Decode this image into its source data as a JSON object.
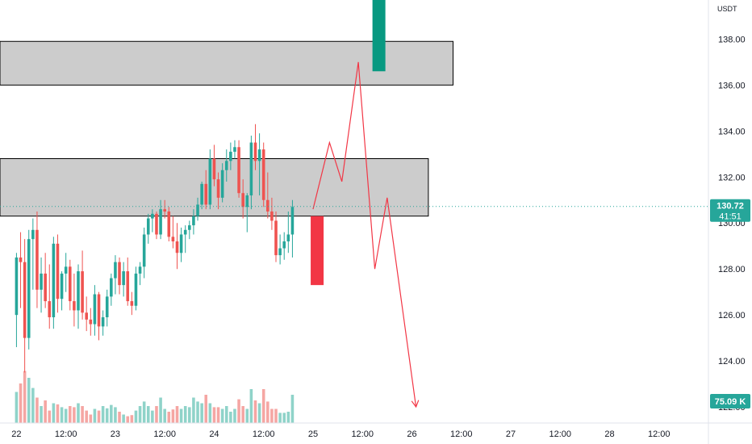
{
  "chart_data": {
    "type": "candlestick",
    "currency": "USDT",
    "y_ticks": [
      "122.00",
      "124.00",
      "126.00",
      "128.00",
      "130.00",
      "132.00",
      "134.00",
      "136.00",
      "138.00"
    ],
    "ylim": [
      121.3,
      139.7
    ],
    "x_ticks": [
      {
        "label": "22",
        "t": 0
      },
      {
        "label": "12:00",
        "t": 12
      },
      {
        "label": "23",
        "t": 24
      },
      {
        "label": "12:00",
        "t": 36
      },
      {
        "label": "24",
        "t": 48
      },
      {
        "label": "12:00",
        "t": 60
      },
      {
        "label": "25",
        "t": 72
      },
      {
        "label": "12:00",
        "t": 84
      },
      {
        "label": "26",
        "t": 96
      },
      {
        "label": "12:00",
        "t": 108
      },
      {
        "label": "27",
        "t": 120
      },
      {
        "label": "12:00",
        "t": 132
      },
      {
        "label": "28",
        "t": 144
      },
      {
        "label": "12:00",
        "t": 156
      }
    ],
    "xlim": [
      -4,
      168
    ],
    "last_price": {
      "value": "130.72",
      "countdown": "41:51"
    },
    "volume_label": "75.09 K",
    "colors": {
      "up": "#26a69a",
      "down": "#ef5350",
      "vol_up": "#8fd3c9",
      "vol_down": "#f5a6a3",
      "zone": "#cccccc",
      "projection": "#f23645",
      "accent_up": "#089981",
      "accent_down": "#f23645"
    },
    "zones": [
      {
        "from": 136.0,
        "to": 137.9,
        "t_start": -4,
        "t_end": 106
      },
      {
        "from": 130.3,
        "to": 132.8,
        "t_start": -4,
        "t_end": 100
      }
    ],
    "projection_path": [
      [
        72,
        130.6
      ],
      [
        76,
        133.5
      ],
      [
        79,
        131.8
      ],
      [
        83,
        137.0
      ],
      [
        87,
        128.0
      ],
      [
        90,
        131.1
      ],
      [
        97,
        122.0
      ]
    ],
    "marker_bars": [
      {
        "t": 88,
        "top": 141.0,
        "bottom": 136.6,
        "color": "accent_up"
      },
      {
        "t": 73,
        "top": 130.3,
        "bottom": 127.3,
        "color": "accent_down"
      }
    ],
    "candles": [
      {
        "t": 0,
        "o": 126,
        "h": 128.7,
        "l": 124.6,
        "c": 128.5
      },
      {
        "t": 1,
        "o": 128.5,
        "h": 129.6,
        "l": 126.3,
        "c": 128.3
      },
      {
        "t": 2,
        "o": 128.3,
        "h": 129.3,
        "l": 123.5,
        "c": 125
      },
      {
        "t": 3,
        "o": 125,
        "h": 129.7,
        "l": 124.5,
        "c": 129.3
      },
      {
        "t": 4,
        "o": 129.3,
        "h": 130.2,
        "l": 127.1,
        "c": 129.7
      },
      {
        "t": 5,
        "o": 129.7,
        "h": 130.5,
        "l": 126.3,
        "c": 127.1
      },
      {
        "t": 6,
        "o": 127.1,
        "h": 128.5,
        "l": 126.1,
        "c": 127.8
      },
      {
        "t": 7,
        "o": 127.8,
        "h": 128.7,
        "l": 126.3,
        "c": 126.6
      },
      {
        "t": 8,
        "o": 126.6,
        "h": 128.2,
        "l": 125.4,
        "c": 125.9
      },
      {
        "t": 9,
        "o": 125.9,
        "h": 129.4,
        "l": 125.4,
        "c": 129.1
      },
      {
        "t": 10,
        "o": 129.1,
        "h": 129.5,
        "l": 126.1,
        "c": 126.7
      },
      {
        "t": 11,
        "o": 126.7,
        "h": 127.9,
        "l": 126.2,
        "c": 127.8
      },
      {
        "t": 12,
        "o": 127.8,
        "h": 128.7,
        "l": 127,
        "c": 128.1
      },
      {
        "t": 13,
        "o": 128.1,
        "h": 128.4,
        "l": 126.2,
        "c": 126.6
      },
      {
        "t": 14,
        "o": 126.6,
        "h": 127.8,
        "l": 125.5,
        "c": 126.2
      },
      {
        "t": 15,
        "o": 126.2,
        "h": 128.2,
        "l": 125.4,
        "c": 127.9
      },
      {
        "t": 16,
        "o": 127.9,
        "h": 128.8,
        "l": 125.8,
        "c": 126.1
      },
      {
        "t": 17,
        "o": 126.1,
        "h": 126.8,
        "l": 125.3,
        "c": 125.8
      },
      {
        "t": 18,
        "o": 125.8,
        "h": 126.3,
        "l": 125.1,
        "c": 125.6
      },
      {
        "t": 19,
        "o": 125.6,
        "h": 127.3,
        "l": 125.1,
        "c": 126.9
      },
      {
        "t": 20,
        "o": 126.9,
        "h": 127,
        "l": 124.9,
        "c": 125.5
      },
      {
        "t": 21,
        "o": 125.5,
        "h": 126.2,
        "l": 125.1,
        "c": 125.9
      },
      {
        "t": 22,
        "o": 125.9,
        "h": 127.1,
        "l": 125.5,
        "c": 126.8
      },
      {
        "t": 23,
        "o": 126.8,
        "h": 127.8,
        "l": 126.4,
        "c": 127.6
      },
      {
        "t": 24,
        "o": 127.6,
        "h": 128.6,
        "l": 126.9,
        "c": 128.3
      },
      {
        "t": 25,
        "o": 128.3,
        "h": 128.5,
        "l": 126.9,
        "c": 127.3
      },
      {
        "t": 26,
        "o": 127.3,
        "h": 128.3,
        "l": 126.8,
        "c": 127.9
      },
      {
        "t": 27,
        "o": 127.9,
        "h": 128.5,
        "l": 126.4,
        "c": 126.6
      },
      {
        "t": 28,
        "o": 126.6,
        "h": 127,
        "l": 126,
        "c": 126.4
      },
      {
        "t": 29,
        "o": 126.4,
        "h": 128.1,
        "l": 126.2,
        "c": 127.8
      },
      {
        "t": 30,
        "o": 127.8,
        "h": 128.3,
        "l": 127.3,
        "c": 128.1
      },
      {
        "t": 31,
        "o": 128.1,
        "h": 129.8,
        "l": 127.6,
        "c": 129.5
      },
      {
        "t": 32,
        "o": 129.5,
        "h": 130.4,
        "l": 129.1,
        "c": 130.2
      },
      {
        "t": 33,
        "o": 130.2,
        "h": 130.6,
        "l": 129.6,
        "c": 130.4
      },
      {
        "t": 34,
        "o": 130.4,
        "h": 130.5,
        "l": 129.3,
        "c": 129.5
      },
      {
        "t": 35,
        "o": 129.5,
        "h": 131,
        "l": 129.3,
        "c": 130.6
      },
      {
        "t": 36,
        "o": 130.6,
        "h": 131,
        "l": 130.2,
        "c": 130.5
      },
      {
        "t": 37,
        "o": 130.5,
        "h": 130.7,
        "l": 129.2,
        "c": 129.4
      },
      {
        "t": 38,
        "o": 129.4,
        "h": 130.3,
        "l": 128.9,
        "c": 129.2
      },
      {
        "t": 39,
        "o": 129.2,
        "h": 130,
        "l": 128,
        "c": 128.7
      },
      {
        "t": 40,
        "o": 128.7,
        "h": 129.8,
        "l": 128.3,
        "c": 129.5
      },
      {
        "t": 41,
        "o": 129.5,
        "h": 129.9,
        "l": 128.7,
        "c": 129.7
      },
      {
        "t": 42,
        "o": 129.7,
        "h": 130.1,
        "l": 129.3,
        "c": 129.9
      },
      {
        "t": 43,
        "o": 129.9,
        "h": 130.6,
        "l": 129.5,
        "c": 130.3
      },
      {
        "t": 44,
        "o": 130.3,
        "h": 131.1,
        "l": 130.1,
        "c": 130.8
      },
      {
        "t": 45,
        "o": 130.8,
        "h": 131.8,
        "l": 130.6,
        "c": 131.7
      },
      {
        "t": 46,
        "o": 131.7,
        "h": 132.3,
        "l": 130.6,
        "c": 130.8
      },
      {
        "t": 47,
        "o": 130.8,
        "h": 133.2,
        "l": 130.6,
        "c": 132.8
      },
      {
        "t": 48,
        "o": 132.8,
        "h": 133.4,
        "l": 131.6,
        "c": 131.9
      },
      {
        "t": 49,
        "o": 131.9,
        "h": 132.2,
        "l": 130.6,
        "c": 131.1
      },
      {
        "t": 50,
        "o": 131.1,
        "h": 132.6,
        "l": 130.9,
        "c": 132.3
      },
      {
        "t": 51,
        "o": 132.3,
        "h": 133.2,
        "l": 131.8,
        "c": 132.7
      },
      {
        "t": 52,
        "o": 132.7,
        "h": 133.5,
        "l": 132.3,
        "c": 133.1
      },
      {
        "t": 53,
        "o": 133.1,
        "h": 133.6,
        "l": 132.8,
        "c": 133.3
      },
      {
        "t": 54,
        "o": 133.3,
        "h": 133.6,
        "l": 131.1,
        "c": 131.3
      },
      {
        "t": 55,
        "o": 131.3,
        "h": 131.9,
        "l": 130.2,
        "c": 130.7
      },
      {
        "t": 56,
        "o": 130.7,
        "h": 131.3,
        "l": 129.6,
        "c": 131.2
      },
      {
        "t": 57,
        "o": 131.2,
        "h": 133.8,
        "l": 130.6,
        "c": 133.5
      },
      {
        "t": 58,
        "o": 133.5,
        "h": 134.3,
        "l": 132.3,
        "c": 132.7
      },
      {
        "t": 59,
        "o": 132.7,
        "h": 133.9,
        "l": 131.2,
        "c": 133.2
      },
      {
        "t": 60,
        "o": 133.2,
        "h": 133.5,
        "l": 130.7,
        "c": 131.0
      },
      {
        "t": 61,
        "o": 131.0,
        "h": 132.2,
        "l": 130.2,
        "c": 130.5
      },
      {
        "t": 62,
        "o": 130.5,
        "h": 131.1,
        "l": 129.7,
        "c": 130.1
      },
      {
        "t": 63,
        "o": 130.1,
        "h": 130.5,
        "l": 128.3,
        "c": 128.6
      },
      {
        "t": 64,
        "o": 128.6,
        "h": 129.5,
        "l": 128.2,
        "c": 128.9
      },
      {
        "t": 65,
        "o": 128.9,
        "h": 129.6,
        "l": 128.4,
        "c": 129.2
      },
      {
        "t": 66,
        "o": 129.2,
        "h": 130.5,
        "l": 128.7,
        "c": 129.5
      },
      {
        "t": 67,
        "o": 129.5,
        "h": 131.0,
        "l": 128.5,
        "c": 130.7
      }
    ],
    "volume": [
      {
        "t": 0,
        "v": 0.55,
        "up": true
      },
      {
        "t": 1,
        "v": 0.7,
        "up": false
      },
      {
        "t": 2,
        "v": 0.92,
        "up": false
      },
      {
        "t": 3,
        "v": 0.8,
        "up": true
      },
      {
        "t": 4,
        "v": 0.62,
        "up": true
      },
      {
        "t": 5,
        "v": 0.45,
        "up": false
      },
      {
        "t": 6,
        "v": 0.3,
        "up": true
      },
      {
        "t": 7,
        "v": 0.4,
        "up": false
      },
      {
        "t": 8,
        "v": 0.22,
        "up": false
      },
      {
        "t": 9,
        "v": 0.35,
        "up": true
      },
      {
        "t": 10,
        "v": 0.33,
        "up": false
      },
      {
        "t": 11,
        "v": 0.28,
        "up": true
      },
      {
        "t": 12,
        "v": 0.25,
        "up": true
      },
      {
        "t": 13,
        "v": 0.3,
        "up": false
      },
      {
        "t": 14,
        "v": 0.28,
        "up": false
      },
      {
        "t": 15,
        "v": 0.35,
        "up": true
      },
      {
        "t": 16,
        "v": 0.3,
        "up": false
      },
      {
        "t": 17,
        "v": 0.22,
        "up": false
      },
      {
        "t": 18,
        "v": 0.15,
        "up": false
      },
      {
        "t": 19,
        "v": 0.25,
        "up": true
      },
      {
        "t": 20,
        "v": 0.22,
        "up": false
      },
      {
        "t": 21,
        "v": 0.3,
        "up": true
      },
      {
        "t": 22,
        "v": 0.26,
        "up": true
      },
      {
        "t": 23,
        "v": 0.32,
        "up": true
      },
      {
        "t": 24,
        "v": 0.28,
        "up": true
      },
      {
        "t": 25,
        "v": 0.2,
        "up": false
      },
      {
        "t": 26,
        "v": 0.15,
        "up": true
      },
      {
        "t": 27,
        "v": 0.12,
        "up": false
      },
      {
        "t": 28,
        "v": 0.14,
        "up": false
      },
      {
        "t": 29,
        "v": 0.22,
        "up": true
      },
      {
        "t": 30,
        "v": 0.3,
        "up": true
      },
      {
        "t": 31,
        "v": 0.38,
        "up": true
      },
      {
        "t": 32,
        "v": 0.3,
        "up": true
      },
      {
        "t": 33,
        "v": 0.22,
        "up": true
      },
      {
        "t": 34,
        "v": 0.3,
        "up": false
      },
      {
        "t": 35,
        "v": 0.45,
        "up": true
      },
      {
        "t": 36,
        "v": 0.25,
        "up": true
      },
      {
        "t": 37,
        "v": 0.2,
        "up": false
      },
      {
        "t": 38,
        "v": 0.24,
        "up": false
      },
      {
        "t": 39,
        "v": 0.3,
        "up": false
      },
      {
        "t": 40,
        "v": 0.25,
        "up": true
      },
      {
        "t": 41,
        "v": 0.3,
        "up": true
      },
      {
        "t": 42,
        "v": 0.28,
        "up": true
      },
      {
        "t": 43,
        "v": 0.45,
        "up": true
      },
      {
        "t": 44,
        "v": 0.38,
        "up": true
      },
      {
        "t": 45,
        "v": 0.35,
        "up": true
      },
      {
        "t": 46,
        "v": 0.5,
        "up": false
      },
      {
        "t": 47,
        "v": 0.35,
        "up": true
      },
      {
        "t": 48,
        "v": 0.28,
        "up": false
      },
      {
        "t": 49,
        "v": 0.28,
        "up": false
      },
      {
        "t": 50,
        "v": 0.25,
        "up": true
      },
      {
        "t": 51,
        "v": 0.3,
        "up": true
      },
      {
        "t": 52,
        "v": 0.2,
        "up": true
      },
      {
        "t": 53,
        "v": 0.25,
        "up": true
      },
      {
        "t": 54,
        "v": 0.42,
        "up": false
      },
      {
        "t": 55,
        "v": 0.3,
        "up": false
      },
      {
        "t": 56,
        "v": 0.25,
        "up": true
      },
      {
        "t": 57,
        "v": 0.6,
        "up": true
      },
      {
        "t": 58,
        "v": 0.4,
        "up": false
      },
      {
        "t": 59,
        "v": 0.35,
        "up": true
      },
      {
        "t": 60,
        "v": 0.6,
        "up": false
      },
      {
        "t": 61,
        "v": 0.38,
        "up": false
      },
      {
        "t": 62,
        "v": 0.25,
        "up": false
      },
      {
        "t": 63,
        "v": 0.25,
        "up": false
      },
      {
        "t": 64,
        "v": 0.18,
        "up": true
      },
      {
        "t": 65,
        "v": 0.18,
        "up": true
      },
      {
        "t": 66,
        "v": 0.2,
        "up": true
      },
      {
        "t": 67,
        "v": 0.5,
        "up": true
      }
    ]
  }
}
